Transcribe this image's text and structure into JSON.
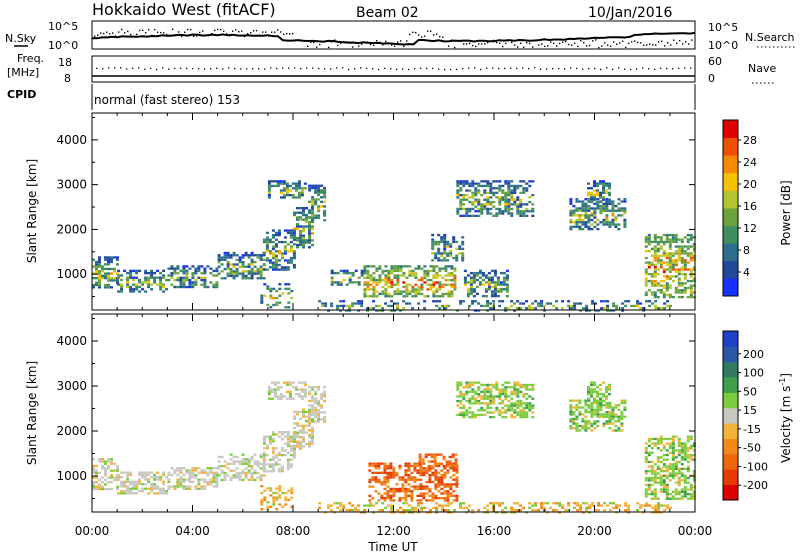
{
  "header": {
    "station": "Hokkaido West (fitACF)",
    "beam": "Beam 02",
    "date": "10/Jan/2016"
  },
  "strip_labels": {
    "nsky": "N.Sky",
    "nsky_ticks": [
      "10^5",
      "10^0"
    ],
    "nsearch": "N.Search",
    "nsearch_ticks": [
      "10^5",
      "10^0"
    ],
    "freq_line1": "Freq.",
    "freq_line2": "[MHz]",
    "freq_ticks": [
      "18",
      "8"
    ],
    "nave": "Nave",
    "nave_ticks": [
      "60",
      "0"
    ],
    "cpid": "CPID",
    "mode": "normal (fast stereo) 153"
  },
  "chart_data": [
    {
      "type": "heatmap",
      "name": "power",
      "ylabel": "Slant Range [km]",
      "yticks": [
        1000,
        2000,
        3000,
        4000
      ],
      "ylim": [
        200,
        4600
      ],
      "x_ticks": [
        "00:00",
        "04:00",
        "08:00",
        "12:00",
        "16:00",
        "20:00",
        "00:00"
      ],
      "colorbar": {
        "label": "Power [dB]",
        "ticks": [
          "4",
          "8",
          "12",
          "16",
          "20",
          "24",
          "28"
        ],
        "colors": [
          "#1530ff",
          "#21489a",
          "#2b6e8e",
          "#3f8e5e",
          "#6aa23c",
          "#b5c62c",
          "#f6c200",
          "#f58a00",
          "#ee4f00",
          "#e10000"
        ]
      },
      "regions": [
        {
          "t0": 0.0,
          "t1": 1.0,
          "r0": 700,
          "r1": 1400
        },
        {
          "t0": 1.0,
          "t1": 3.0,
          "r0": 600,
          "r1": 1100
        },
        {
          "t0": 3.0,
          "t1": 5.0,
          "r0": 700,
          "r1": 1200
        },
        {
          "t0": 5.0,
          "t1": 6.8,
          "r0": 900,
          "r1": 1500
        },
        {
          "t0": 6.8,
          "t1": 8.0,
          "r0": 1100,
          "r1": 2000
        },
        {
          "t0": 8.0,
          "t1": 8.8,
          "r0": 1600,
          "r1": 2500
        },
        {
          "t0": 7.0,
          "t1": 8.5,
          "r0": 2700,
          "r1": 3100
        },
        {
          "t0": 8.6,
          "t1": 9.3,
          "r0": 2200,
          "r1": 3000
        },
        {
          "t0": 6.7,
          "t1": 8.0,
          "r0": 250,
          "r1": 800
        },
        {
          "t0": 9.5,
          "t1": 10.8,
          "r0": 750,
          "r1": 1100
        },
        {
          "t0": 10.8,
          "t1": 14.4,
          "r0": 500,
          "r1": 1200
        },
        {
          "t0": 13.5,
          "t1": 14.8,
          "r0": 1300,
          "r1": 1900
        },
        {
          "t0": 14.8,
          "t1": 16.5,
          "r0": 500,
          "r1": 1100
        },
        {
          "t0": 14.5,
          "t1": 17.5,
          "r0": 2300,
          "r1": 3100
        },
        {
          "t0": 19.0,
          "t1": 21.2,
          "r0": 2000,
          "r1": 2700
        },
        {
          "t0": 19.7,
          "t1": 20.6,
          "r0": 2600,
          "r1": 3100
        },
        {
          "t0": 22.0,
          "t1": 24.0,
          "r0": 500,
          "r1": 1900
        },
        {
          "t0": 9.0,
          "t1": 23.0,
          "r0": 200,
          "r1": 420
        }
      ]
    },
    {
      "type": "heatmap",
      "name": "velocity",
      "ylabel": "Slant Range [km]",
      "yticks": [
        1000,
        2000,
        3000,
        4000
      ],
      "ylim": [
        200,
        4600
      ],
      "x_ticks": [
        "00:00",
        "04:00",
        "08:00",
        "12:00",
        "16:00",
        "20:00",
        "00:00"
      ],
      "xlabel": "Time UT",
      "colorbar": {
        "label": "Velocity [m s",
        "label_sup": "-1",
        "label_end": "]",
        "ticks": [
          "200",
          "100",
          "50",
          "15",
          "-15",
          "-50",
          "-100",
          "-200"
        ],
        "colors": [
          "#2140c8",
          "#2b58a6",
          "#2f7a60",
          "#3ea04a",
          "#7ccd3d",
          "#c8c8c0",
          "#f3b23a",
          "#f38a18",
          "#f0660c",
          "#e83a05",
          "#dd0000"
        ]
      },
      "regions": [
        {
          "t0": 0.0,
          "t1": 1.0,
          "r0": 700,
          "r1": 1400
        },
        {
          "t0": 1.0,
          "t1": 3.0,
          "r0": 600,
          "r1": 1100
        },
        {
          "t0": 3.0,
          "t1": 5.0,
          "r0": 700,
          "r1": 1200
        },
        {
          "t0": 5.0,
          "t1": 6.8,
          "r0": 900,
          "r1": 1500
        },
        {
          "t0": 6.8,
          "t1": 8.0,
          "r0": 1100,
          "r1": 2000
        },
        {
          "t0": 8.0,
          "t1": 8.8,
          "r0": 1600,
          "r1": 2500
        },
        {
          "t0": 7.0,
          "t1": 8.5,
          "r0": 2700,
          "r1": 3100
        },
        {
          "t0": 8.6,
          "t1": 9.3,
          "r0": 2200,
          "r1": 3000
        },
        {
          "t0": 6.7,
          "t1": 8.0,
          "r0": 250,
          "r1": 800
        },
        {
          "t0": 11.0,
          "t1": 14.5,
          "r0": 450,
          "r1": 1300
        },
        {
          "t0": 13.0,
          "t1": 14.5,
          "r0": 1200,
          "r1": 1500
        },
        {
          "t0": 14.5,
          "t1": 17.5,
          "r0": 2300,
          "r1": 3100
        },
        {
          "t0": 19.0,
          "t1": 21.2,
          "r0": 2000,
          "r1": 2700
        },
        {
          "t0": 19.7,
          "t1": 20.6,
          "r0": 2600,
          "r1": 3100
        },
        {
          "t0": 22.0,
          "t1": 24.0,
          "r0": 500,
          "r1": 1900
        },
        {
          "t0": 9.0,
          "t1": 23.0,
          "r0": 200,
          "r1": 420
        }
      ]
    }
  ]
}
